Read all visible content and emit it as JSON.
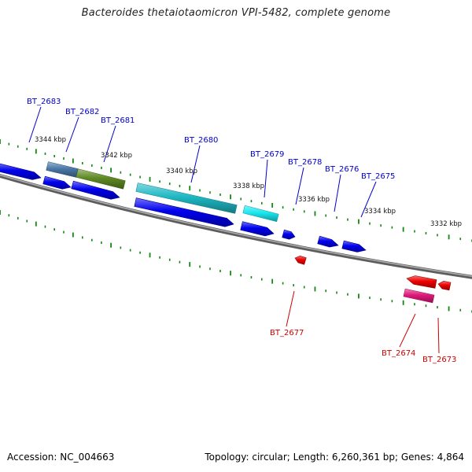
{
  "title": "Bacteroides thetaiotaomicron VPI-5482, complete genome",
  "footer": {
    "accession": "Accession: NC_004663",
    "summary": "Topology: circular; Length: 6,260,361 bp; Genes: 4,864"
  },
  "colors": {
    "forward_strand": "#0000ee",
    "reverse_strand": "#ee0000",
    "backbone": "#7a7a7a",
    "tick": "#118811",
    "label_forward": "#0000cc",
    "label_reverse": "#cc0000"
  },
  "scale": {
    "unit": "kbp",
    "labels": [
      "3344 kbp",
      "3342 kbp",
      "3340 kbp",
      "3338 kbp",
      "3336 kbp",
      "3334 kbp",
      "3332 kbp"
    ]
  },
  "genes": {
    "labels_forward": [
      "BT_2683",
      "BT_2682",
      "BT_2681",
      "BT_2680",
      "BT_2679",
      "BT_2678",
      "BT_2676",
      "BT_2675"
    ],
    "labels_reverse": [
      "BT_2677",
      "BT_2674",
      "BT_2673"
    ],
    "highlight_colors": {
      "BT_2682": "#4a78a8",
      "BT_2681": "#5f8a22",
      "BT_2680": "#1eb8c4",
      "BT_2679": "#19e8f0",
      "BT_2674": "#e0197a"
    }
  }
}
